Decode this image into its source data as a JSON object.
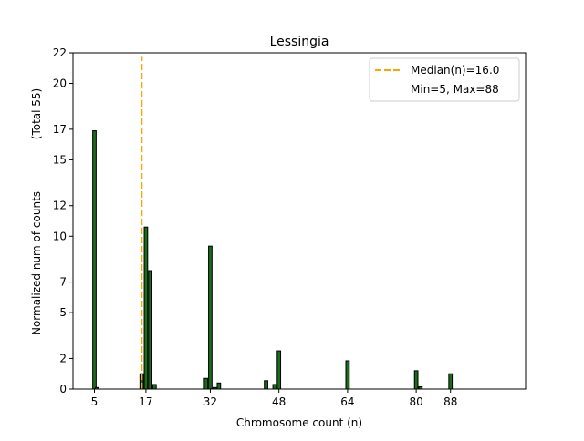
{
  "chart_data": {
    "type": "bar",
    "title": "Lessingia",
    "xlabel": "Chromosome count (n)",
    "ylabel": "Normalized num of counts",
    "ylabel_total": "(Total 55)",
    "xlim": [
      0,
      105.5
    ],
    "ylim": [
      0,
      22
    ],
    "xticks": [
      5,
      17,
      32,
      48,
      64,
      80,
      88
    ],
    "yticks": [
      0,
      2,
      5,
      7,
      10,
      12,
      15,
      17,
      20,
      22
    ],
    "bar_width": 0.8,
    "bars": [
      {
        "x": 5,
        "value": 16.9
      },
      {
        "x": 5.6,
        "value": 0.1
      },
      {
        "x": 16,
        "value": 1.0
      },
      {
        "x": 17,
        "value": 10.6
      },
      {
        "x": 18,
        "value": 7.75
      },
      {
        "x": 19,
        "value": 0.3
      },
      {
        "x": 31,
        "value": 0.7
      },
      {
        "x": 32,
        "value": 9.35
      },
      {
        "x": 33,
        "value": 0.1
      },
      {
        "x": 34,
        "value": 0.4
      },
      {
        "x": 45,
        "value": 0.55
      },
      {
        "x": 47,
        "value": 0.3
      },
      {
        "x": 48,
        "value": 2.5
      },
      {
        "x": 64,
        "value": 1.85
      },
      {
        "x": 80,
        "value": 1.2
      },
      {
        "x": 81,
        "value": 0.15
      },
      {
        "x": 88,
        "value": 1.0
      }
    ],
    "median_line": {
      "x": 16.0,
      "ymax": 21.75
    },
    "legend": {
      "placement": "top-right",
      "entries": [
        "Median(n)=16.0",
        "Min=5, Max=88"
      ]
    },
    "colors": {
      "bar": "#1a6b1a",
      "edge": "#000000",
      "median": "#ffa500"
    },
    "grid": false
  }
}
